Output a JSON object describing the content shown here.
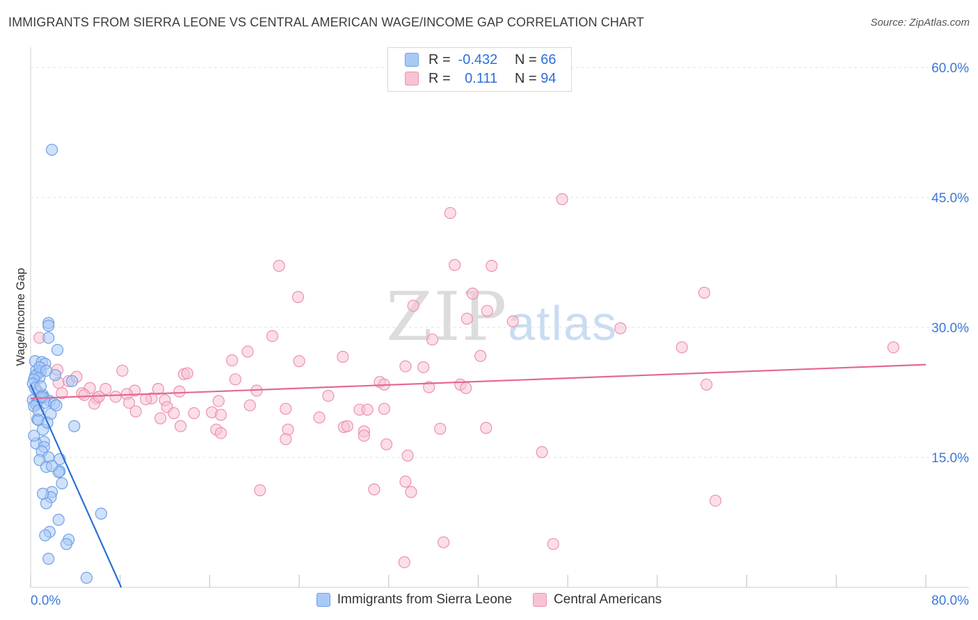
{
  "title": "IMMIGRANTS FROM SIERRA LEONE VS CENTRAL AMERICAN WAGE/INCOME GAP CORRELATION CHART",
  "source": "Source: ZipAtlas.com",
  "watermark": {
    "zip": "ZIP",
    "atlas": "atlas"
  },
  "legend": {
    "rows": [
      {
        "r_label": "R =",
        "r_value": "-0.432",
        "n_label": "N =",
        "n_value": "66",
        "color": "#a9c9f5",
        "border": "#6ea0e6"
      },
      {
        "r_label": "R =",
        "r_value": "0.111",
        "n_label": "N =",
        "n_value": "94",
        "color": "#f7c3d4",
        "border": "#ec91b0"
      }
    ]
  },
  "chart_data": {
    "type": "scatter",
    "title": "IMMIGRANTS FROM SIERRA LEONE VS CENTRAL AMERICAN WAGE/INCOME GAP CORRELATION CHART",
    "xlabel": "",
    "ylabel": "Wage/Income Gap",
    "xlim": [
      0,
      80
    ],
    "ylim": [
      0,
      60
    ],
    "x_tick_labels": [
      "0.0%",
      "80.0%"
    ],
    "y_ticks": [
      15,
      30,
      45,
      60
    ],
    "y_tick_labels": [
      "15.0%",
      "30.0%",
      "45.0%",
      "60.0%"
    ],
    "grid": true,
    "series": [
      {
        "name": "Immigrants from Sierra Leone",
        "color": "#6ea0e6",
        "fill": "#a9c9f5",
        "line_color": "#2a6fd3",
        "trend": {
          "x0": 0,
          "y0": 23.4,
          "x1": 8.1,
          "y1": 0
        },
        "points": [
          [
            1.9,
            50.5
          ],
          [
            1.6,
            30.5
          ],
          [
            1.6,
            30.2
          ],
          [
            1.6,
            28.8
          ],
          [
            2.4,
            27.4
          ],
          [
            0.4,
            26.1
          ],
          [
            1.0,
            26.0
          ],
          [
            1.3,
            25.8
          ],
          [
            0.5,
            25.0
          ],
          [
            0.9,
            24.9
          ],
          [
            0.6,
            24.6
          ],
          [
            2.2,
            24.5
          ],
          [
            0.4,
            24.4
          ],
          [
            0.8,
            24.2
          ],
          [
            0.3,
            24.0
          ],
          [
            3.7,
            23.8
          ],
          [
            0.2,
            23.5
          ],
          [
            0.6,
            22.6
          ],
          [
            1.1,
            22.2
          ],
          [
            1.2,
            21.9
          ],
          [
            0.9,
            21.8
          ],
          [
            0.2,
            21.6
          ],
          [
            1.7,
            21.5
          ],
          [
            0.6,
            21.4
          ],
          [
            1.3,
            21.3
          ],
          [
            2.1,
            21.2
          ],
          [
            0.5,
            21.1
          ],
          [
            0.3,
            20.9
          ],
          [
            1.8,
            20.0
          ],
          [
            0.6,
            19.4
          ],
          [
            0.7,
            19.3
          ],
          [
            3.9,
            18.6
          ],
          [
            1.1,
            18.2
          ],
          [
            1.2,
            16.8
          ],
          [
            0.5,
            16.6
          ],
          [
            1.2,
            16.2
          ],
          [
            1.0,
            15.7
          ],
          [
            1.6,
            15.0
          ],
          [
            2.6,
            14.8
          ],
          [
            0.8,
            14.7
          ],
          [
            1.4,
            13.9
          ],
          [
            2.6,
            13.4
          ],
          [
            2.5,
            13.3
          ],
          [
            1.9,
            11.0
          ],
          [
            1.8,
            10.4
          ],
          [
            1.4,
            9.7
          ],
          [
            2.5,
            7.8
          ],
          [
            6.3,
            8.5
          ],
          [
            1.7,
            6.4
          ],
          [
            1.3,
            6.0
          ],
          [
            3.4,
            5.5
          ],
          [
            3.2,
            5.0
          ],
          [
            1.6,
            3.3
          ],
          [
            5.0,
            1.1
          ],
          [
            0.8,
            25.4
          ],
          [
            1.4,
            25.0
          ],
          [
            0.4,
            23.0
          ],
          [
            0.9,
            23.2
          ],
          [
            1.0,
            22.0
          ],
          [
            2.3,
            21.0
          ],
          [
            0.7,
            20.4
          ],
          [
            1.5,
            19.0
          ],
          [
            0.3,
            17.5
          ],
          [
            1.9,
            14.0
          ],
          [
            2.8,
            12.0
          ],
          [
            1.1,
            10.8
          ]
        ]
      },
      {
        "name": "Central Americans",
        "color": "#ec91b0",
        "fill": "#f7c3d4",
        "line_color": "#e5688f",
        "trend": {
          "x0": 0,
          "y0": 21.8,
          "x1": 80,
          "y1": 25.7
        },
        "points": [
          [
            47.5,
            44.8
          ],
          [
            37.5,
            43.2
          ],
          [
            22.2,
            37.1
          ],
          [
            37.9,
            37.2
          ],
          [
            41.2,
            37.1
          ],
          [
            60.2,
            34.0
          ],
          [
            23.9,
            33.5
          ],
          [
            39.5,
            33.9
          ],
          [
            34.2,
            32.5
          ],
          [
            40.8,
            31.9
          ],
          [
            43.1,
            30.7
          ],
          [
            52.7,
            29.9
          ],
          [
            39.0,
            31.0
          ],
          [
            21.6,
            29.0
          ],
          [
            0.8,
            28.8
          ],
          [
            35.9,
            28.6
          ],
          [
            19.4,
            27.2
          ],
          [
            27.9,
            26.6
          ],
          [
            40.2,
            26.7
          ],
          [
            18.0,
            26.2
          ],
          [
            24.0,
            26.1
          ],
          [
            33.5,
            25.5
          ],
          [
            35.1,
            25.4
          ],
          [
            58.2,
            27.7
          ],
          [
            77.1,
            27.7
          ],
          [
            2.4,
            25.1
          ],
          [
            13.7,
            24.6
          ],
          [
            8.2,
            25.0
          ],
          [
            14.0,
            24.7
          ],
          [
            18.3,
            24.0
          ],
          [
            31.2,
            23.7
          ],
          [
            31.6,
            23.4
          ],
          [
            35.6,
            23.1
          ],
          [
            38.4,
            23.4
          ],
          [
            38.9,
            23.0
          ],
          [
            60.4,
            23.4
          ],
          [
            2.5,
            23.6
          ],
          [
            3.4,
            23.8
          ],
          [
            5.3,
            23.0
          ],
          [
            6.7,
            22.9
          ],
          [
            9.3,
            22.7
          ],
          [
            11.4,
            22.9
          ],
          [
            13.3,
            22.6
          ],
          [
            20.2,
            22.7
          ],
          [
            4.6,
            22.4
          ],
          [
            4.8,
            22.2
          ],
          [
            5.9,
            21.8
          ],
          [
            7.6,
            22.0
          ],
          [
            8.6,
            22.3
          ],
          [
            10.8,
            21.8
          ],
          [
            12.0,
            21.6
          ],
          [
            16.8,
            21.5
          ],
          [
            26.6,
            22.1
          ],
          [
            5.7,
            21.2
          ],
          [
            8.8,
            21.3
          ],
          [
            12.2,
            20.8
          ],
          [
            19.6,
            21.0
          ],
          [
            22.8,
            20.6
          ],
          [
            29.4,
            20.5
          ],
          [
            30.1,
            20.5
          ],
          [
            10.3,
            21.7
          ],
          [
            14.6,
            20.1
          ],
          [
            16.2,
            20.2
          ],
          [
            17.0,
            19.9
          ],
          [
            11.6,
            19.5
          ],
          [
            12.8,
            20.1
          ],
          [
            25.8,
            19.6
          ],
          [
            31.6,
            20.6
          ],
          [
            13.4,
            18.6
          ],
          [
            16.6,
            18.2
          ],
          [
            17.0,
            17.8
          ],
          [
            23.0,
            18.2
          ],
          [
            28.0,
            18.5
          ],
          [
            28.3,
            18.6
          ],
          [
            29.8,
            18.0
          ],
          [
            36.6,
            18.3
          ],
          [
            40.7,
            18.4
          ],
          [
            22.8,
            17.1
          ],
          [
            29.8,
            17.5
          ],
          [
            31.8,
            16.5
          ],
          [
            33.7,
            15.2
          ],
          [
            45.7,
            15.6
          ],
          [
            20.5,
            11.2
          ],
          [
            30.7,
            11.3
          ],
          [
            33.5,
            12.2
          ],
          [
            36.9,
            5.2
          ],
          [
            46.7,
            5.0
          ],
          [
            33.4,
            2.9
          ],
          [
            61.2,
            10.0
          ],
          [
            2.8,
            22.4
          ],
          [
            4.1,
            24.3
          ],
          [
            6.1,
            22.0
          ],
          [
            9.4,
            20.3
          ],
          [
            34.0,
            11.0
          ]
        ]
      }
    ]
  },
  "bottom_legend": [
    {
      "label": "Immigrants from Sierra Leone",
      "color": "#a9c9f5",
      "border": "#6ea0e6"
    },
    {
      "label": "Central Americans",
      "color": "#f7c3d4",
      "border": "#ec91b0"
    }
  ]
}
